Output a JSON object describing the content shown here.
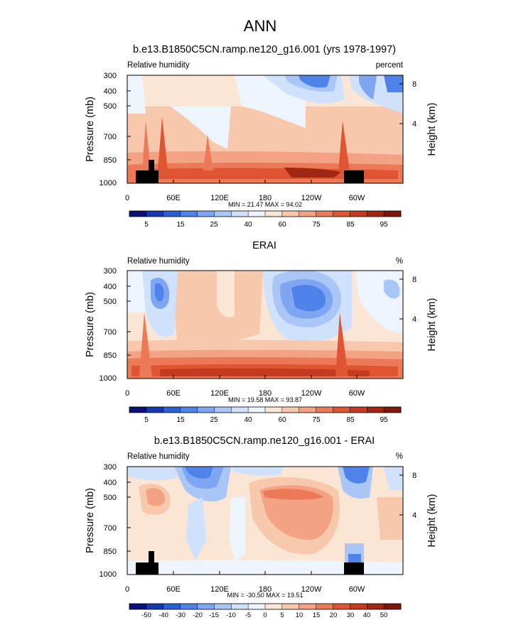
{
  "page": {
    "title": "ANN"
  },
  "chart_data": [
    {
      "type": "heatmap",
      "title": "b.e13.B1850C5CN.ramp.ne120_g16.001 (yrs 1978-1997)",
      "left_label": "Relative humidity",
      "right_label": "percent",
      "ylabel": "Pressure (mb)",
      "ylabel_right": "Height (km)",
      "yticks": [
        "300",
        "400",
        "500",
        "700",
        "850",
        "1000"
      ],
      "yticks_right": [
        "8",
        "4"
      ],
      "xticks": [
        "0",
        "60E",
        "120E",
        "180",
        "120W",
        "60W"
      ],
      "stats": "MIN =  21.47  MAX =  94.02",
      "colorbar_labels": [
        "5",
        "15",
        "25",
        "40",
        "60",
        "75",
        "85",
        "95"
      ],
      "colorbar_colors": [
        "#08107a",
        "#1538b0",
        "#2c5fd6",
        "#4f83ea",
        "#7ea6f2",
        "#a9c6f6",
        "#cfe1fb",
        "#eef4fb",
        "#fbe6d6",
        "#f8c8ad",
        "#f3a283",
        "#ec7a58",
        "#df5533",
        "#c63a1f",
        "#a22712",
        "#80150a"
      ]
    },
    {
      "type": "heatmap",
      "title": "ERAI",
      "left_label": "Relative humidity",
      "right_label": "%",
      "ylabel": "Pressure (mb)",
      "ylabel_right": "Height (km)",
      "yticks": [
        "300",
        "400",
        "500",
        "700",
        "850",
        "1000"
      ],
      "yticks_right": [
        "8",
        "4"
      ],
      "xticks": [
        "0",
        "60E",
        "120E",
        "180",
        "120W",
        "60W"
      ],
      "stats": "MIN =  19.58  MAX =  93.87",
      "colorbar_labels": [
        "5",
        "15",
        "25",
        "40",
        "60",
        "75",
        "85",
        "95"
      ],
      "colorbar_colors": [
        "#08107a",
        "#1538b0",
        "#2c5fd6",
        "#4f83ea",
        "#7ea6f2",
        "#a9c6f6",
        "#cfe1fb",
        "#eef4fb",
        "#fbe6d6",
        "#f8c8ad",
        "#f3a283",
        "#ec7a58",
        "#df5533",
        "#c63a1f",
        "#a22712",
        "#80150a"
      ]
    },
    {
      "type": "heatmap",
      "title": "b.e13.B1850C5CN.ramp.ne120_g16.001 - ERAI",
      "left_label": "Relative humidity",
      "right_label": "%",
      "ylabel": "Pressure (mb)",
      "ylabel_right": "Height (km)",
      "yticks": [
        "300",
        "400",
        "500",
        "700",
        "850",
        "1000"
      ],
      "yticks_right": [
        "8",
        "4"
      ],
      "xticks": [
        "0",
        "60E",
        "120E",
        "180",
        "120W",
        "60W"
      ],
      "stats": "MIN = -30.50  MAX =  19.51",
      "colorbar_labels": [
        "-50",
        "-40",
        "-30",
        "-20",
        "-15",
        "-10",
        "-5",
        "0",
        "5",
        "10",
        "15",
        "20",
        "30",
        "40",
        "50"
      ],
      "colorbar_colors": [
        "#08107a",
        "#1538b0",
        "#2c5fd6",
        "#4f83ea",
        "#7ea6f2",
        "#a9c6f6",
        "#cfe1fb",
        "#eef4fb",
        "#fbe6d6",
        "#f8c8ad",
        "#f3a283",
        "#ec7a58",
        "#df5533",
        "#c63a1f",
        "#a22712",
        "#80150a"
      ]
    }
  ]
}
